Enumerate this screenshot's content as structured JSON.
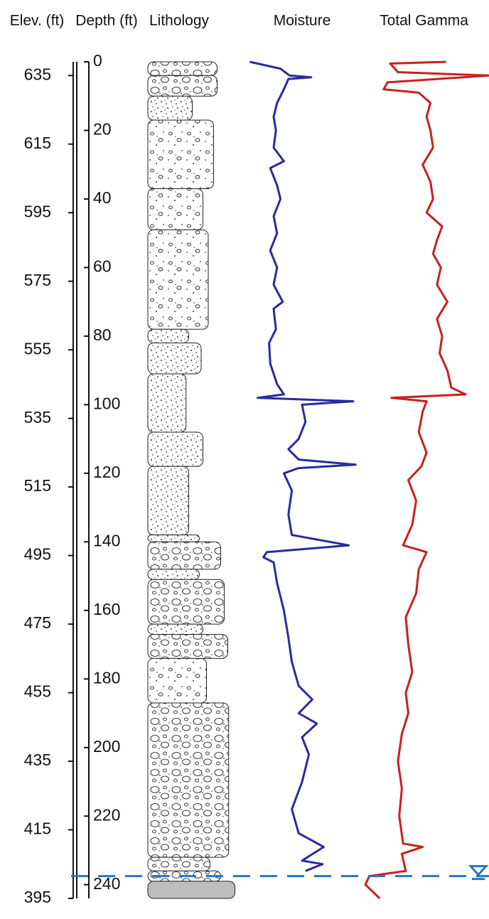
{
  "chart_data": {
    "type": "well-log",
    "elev_label": "Elev. (ft)",
    "depth_label": "Depth (ft)",
    "lithology_label": "Lithology",
    "ylim": [
      0,
      244
    ],
    "yticks": [
      0,
      20,
      40,
      60,
      80,
      100,
      120,
      140,
      160,
      180,
      200,
      220,
      240
    ],
    "elev_lim": [
      639,
      395
    ],
    "elev_ticks": [
      635,
      615,
      595,
      575,
      555,
      535,
      515,
      495,
      475,
      455,
      435,
      415,
      395
    ],
    "water_level": 237.5,
    "water_color": "#1f78c8",
    "lithology": [
      {
        "top": 0,
        "bottom": 4,
        "width": 78,
        "pattern": "gravel"
      },
      {
        "top": 4,
        "bottom": 10,
        "width": 78,
        "pattern": "gravel"
      },
      {
        "top": 10,
        "bottom": 17,
        "width": 50,
        "pattern": "sand"
      },
      {
        "top": 17,
        "bottom": 37,
        "width": 74,
        "pattern": "pebbles"
      },
      {
        "top": 37,
        "bottom": 49,
        "width": 62,
        "pattern": "pebbles"
      },
      {
        "top": 49,
        "bottom": 78,
        "width": 68,
        "pattern": "pebbles"
      },
      {
        "top": 78,
        "bottom": 82,
        "width": 46,
        "pattern": "sand"
      },
      {
        "top": 82,
        "bottom": 91,
        "width": 60,
        "pattern": "sand"
      },
      {
        "top": 91,
        "bottom": 108,
        "width": 43,
        "pattern": "sand"
      },
      {
        "top": 108,
        "bottom": 118,
        "width": 62,
        "pattern": "sand"
      },
      {
        "top": 118,
        "bottom": 138,
        "width": 46,
        "pattern": "sand"
      },
      {
        "top": 138,
        "bottom": 140,
        "width": 58,
        "pattern": "sand"
      },
      {
        "top": 140,
        "bottom": 148,
        "width": 82,
        "pattern": "gravel"
      },
      {
        "top": 148,
        "bottom": 151,
        "width": 58,
        "pattern": "sand"
      },
      {
        "top": 151,
        "bottom": 164,
        "width": 86,
        "pattern": "gravel"
      },
      {
        "top": 164,
        "bottom": 167,
        "width": 62,
        "pattern": "sand"
      },
      {
        "top": 167,
        "bottom": 174,
        "width": 90,
        "pattern": "gravel"
      },
      {
        "top": 174,
        "bottom": 187,
        "width": 66,
        "pattern": "pebbles"
      },
      {
        "top": 187,
        "bottom": 232,
        "width": 91,
        "pattern": "gravel"
      },
      {
        "top": 232,
        "bottom": 236,
        "width": 70,
        "pattern": "gravel"
      },
      {
        "top": 236,
        "bottom": 239,
        "width": 82,
        "pattern": "gravel"
      },
      {
        "top": 239,
        "bottom": 244,
        "width": 98,
        "pattern": "rock"
      }
    ],
    "series": [
      {
        "name": "Moisture",
        "color": "#2a2aa0",
        "xlim": [
          0,
          100
        ],
        "depth": [
          0,
          2,
          4,
          4.5,
          5,
          8,
          12,
          16,
          20,
          25,
          29,
          31,
          36,
          40,
          45,
          50,
          55,
          60,
          65,
          70,
          72,
          78,
          82,
          88,
          94,
          97,
          98,
          99,
          100,
          105,
          110,
          113,
          116,
          117.5,
          118.5,
          120,
          125,
          132,
          138,
          141,
          143,
          144.5,
          146,
          152,
          160,
          168,
          175,
          182,
          186,
          190,
          193,
          197,
          202,
          210,
          218,
          225,
          229,
          233,
          234,
          236
        ],
        "values": [
          4,
          31,
          39,
          58,
          38,
          34,
          28,
          25,
          27,
          25,
          34,
          22,
          28,
          31,
          25,
          28,
          22,
          28,
          25,
          33,
          25,
          27,
          21,
          22,
          28,
          34,
          11,
          95,
          50,
          53,
          47,
          38,
          47,
          97,
          47,
          34,
          41,
          38,
          41,
          91,
          19,
          16,
          25,
          28,
          34,
          38,
          41,
          47,
          59,
          47,
          63,
          50,
          56,
          50,
          41,
          47,
          69,
          50,
          68,
          53
        ]
      },
      {
        "name": "Total Gamma",
        "color": "#c82020",
        "xlim": [
          0,
          100
        ],
        "depth": [
          0,
          0.5,
          3,
          4,
          6,
          8,
          9,
          12,
          16,
          20,
          25,
          30,
          35,
          40,
          44,
          48,
          52,
          56,
          60,
          65,
          70,
          75,
          80,
          85,
          90,
          95,
          97,
          98,
          99,
          102,
          108,
          114,
          118,
          122,
          128,
          135,
          141,
          143,
          148,
          155,
          162,
          170,
          178,
          184,
          190,
          196,
          204,
          212,
          220,
          228,
          229,
          231,
          236,
          237.5,
          240,
          244
        ],
        "values": [
          67,
          24,
          30,
          100,
          22,
          19,
          46,
          55,
          52,
          55,
          57,
          49,
          55,
          57,
          52,
          64,
          60,
          57,
          63,
          60,
          68,
          60,
          64,
          62,
          68,
          71,
          82,
          25,
          52,
          49,
          46,
          52,
          48,
          38,
          44,
          41,
          34,
          52,
          46,
          44,
          36,
          38,
          41,
          36,
          38,
          33,
          30,
          33,
          31,
          34,
          49,
          33,
          36,
          8,
          5,
          16
        ]
      }
    ]
  }
}
